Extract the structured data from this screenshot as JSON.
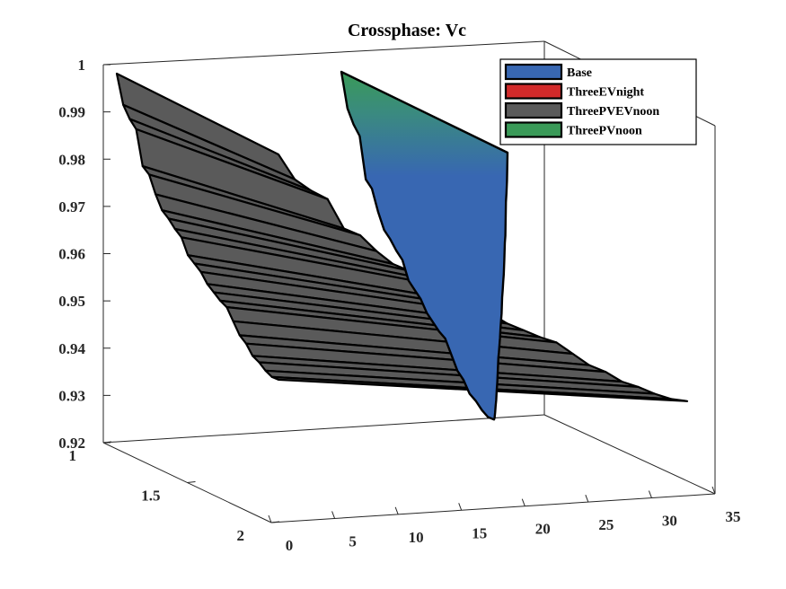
{
  "chart_data": {
    "type": "surface3d",
    "title": "Crossphase: Vc",
    "xlabel": "",
    "ylabel": "",
    "zlabel": "",
    "xlim": [
      0,
      35
    ],
    "ylim": [
      1,
      2
    ],
    "zlim": [
      0.92,
      1
    ],
    "x_ticks": [
      "0",
      "5",
      "10",
      "15",
      "20",
      "25",
      "30",
      "35"
    ],
    "y_ticks": [
      "1",
      "1.5",
      "2"
    ],
    "z_ticks": [
      "0.92",
      "0.93",
      "0.94",
      "0.95",
      "0.96",
      "0.97",
      "0.98",
      "0.99",
      "1"
    ],
    "legend": {
      "placement": "top-right",
      "entries": [
        {
          "label": "Base",
          "color": "#3867b2"
        },
        {
          "label": "ThreeEVnight",
          "color": "#d22a2a"
        },
        {
          "label": "ThreePVEVnoon",
          "color": "#5a5a5a"
        },
        {
          "label": "ThreePVnoon",
          "color": "#3a9a58"
        }
      ]
    },
    "series": [
      {
        "name": "ThreePVEVnoon",
        "x": [
          1,
          3,
          4,
          6,
          7,
          8,
          9,
          11,
          12,
          14,
          15,
          16,
          17,
          18,
          20,
          21,
          22,
          23,
          25,
          26,
          27,
          28,
          29,
          30,
          32,
          33
        ],
        "z": [
          1.0,
          0.992,
          0.9885,
          0.986,
          0.9765,
          0.9745,
          0.9695,
          0.9655,
          0.9635,
          0.961,
          0.959,
          0.9545,
          0.9525,
          0.9505,
          0.9475,
          0.9455,
          0.9435,
          0.942,
          0.9385,
          0.935,
          0.933,
          0.93,
          0.9285,
          0.9265,
          0.925,
          0.9245
        ]
      },
      {
        "name": "Base",
        "x": [
          1,
          3,
          4,
          6,
          7,
          8,
          9,
          11,
          12,
          14,
          15,
          16,
          17,
          18,
          20,
          21,
          22,
          23,
          25,
          26,
          27,
          28,
          29,
          30,
          32,
          33
        ],
        "z": [
          1.0,
          0.992,
          0.9885,
          0.986,
          0.9765,
          0.9745,
          0.9695,
          0.9655,
          0.9635,
          0.961,
          0.959,
          0.9545,
          0.9525,
          0.9505,
          0.9475,
          0.9455,
          0.9435,
          0.942,
          0.9385,
          0.935,
          0.933,
          0.93,
          0.9285,
          0.9265,
          0.925,
          0.9245
        ]
      }
    ],
    "grid": false
  }
}
